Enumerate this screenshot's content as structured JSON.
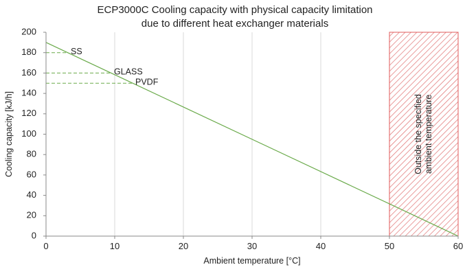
{
  "chart_data": {
    "type": "line",
    "title": [
      "ECP3000C Cooling capacity with physical capacity limitation",
      "due to different heat exchanger materials"
    ],
    "xlabel": "Ambient temperature [°C]",
    "ylabel": "Cooling capacity [kJ/h]",
    "xlim": [
      0,
      60
    ],
    "ylim": [
      0,
      200
    ],
    "xticks": [
      0,
      10,
      20,
      30,
      40,
      50,
      60
    ],
    "yticks": [
      0,
      20,
      40,
      60,
      80,
      100,
      120,
      140,
      160,
      180,
      200
    ],
    "grid": "vertical",
    "series": [
      {
        "x": [
          0,
          60
        ],
        "y": [
          190,
          0
        ],
        "color": "#6aaa4a",
        "style": "solid"
      }
    ],
    "limits": [
      {
        "label": "SS",
        "y": 180,
        "x_end": 3.2,
        "color": "#6aaa4a",
        "style": "dashed"
      },
      {
        "label": "GLASS",
        "y": 160,
        "x_end": 9.5,
        "color": "#6aaa4a",
        "style": "dashed"
      },
      {
        "label": "PVDF",
        "y": 150,
        "x_end": 12.6,
        "color": "#6aaa4a",
        "style": "dashed"
      }
    ],
    "region": {
      "x_start": 50,
      "x_end": 60,
      "label": [
        "Outside the specified",
        "ambient temperature"
      ],
      "color": "#e05a5a",
      "pattern": "diagonal-hatch"
    }
  }
}
